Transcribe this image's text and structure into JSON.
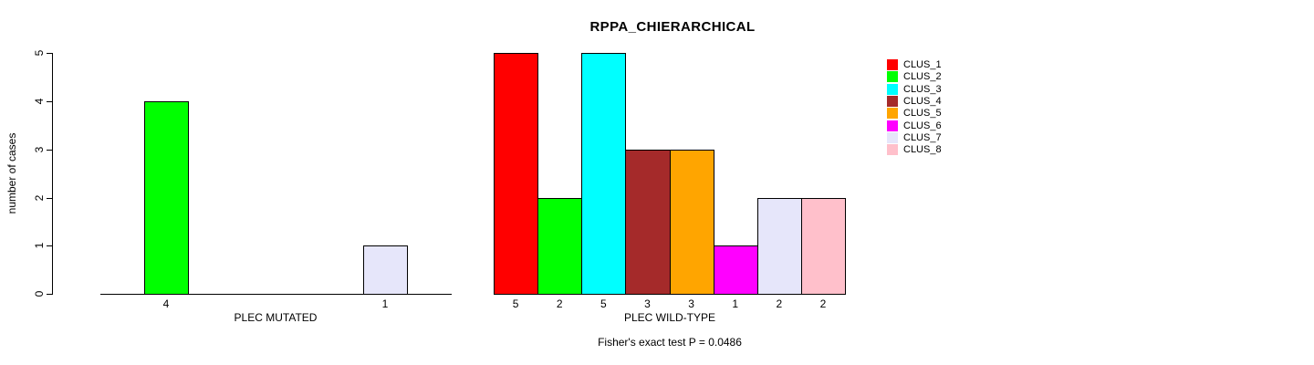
{
  "title": "RPPA_CHIERARCHICAL",
  "caption": "Fisher's exact test P = 0.0486",
  "y_axis": {
    "label": "number of cases",
    "ticks": [
      0,
      1,
      2,
      3,
      4,
      5
    ],
    "range": [
      0,
      5
    ]
  },
  "chart_data": [
    {
      "type": "bar",
      "panel": "left",
      "xlabel": "PLEC MUTATED",
      "categories": [
        "CLUS_1",
        "CLUS_2",
        "CLUS_3",
        "CLUS_4",
        "CLUS_5",
        "CLUS_6",
        "CLUS_7",
        "CLUS_8"
      ],
      "values": [
        0,
        4,
        0,
        0,
        0,
        0,
        1,
        0
      ],
      "bar_value_labels": [
        "",
        "4",
        "",
        "",
        "",
        "",
        "1",
        ""
      ],
      "colors": [
        "#FF0000",
        "#00FF00",
        "#00FFFF",
        "#A52A2A",
        "#FFA500",
        "#FF00FF",
        "#E6E6FA",
        "#FFC0CB"
      ],
      "ylim": [
        0,
        5
      ],
      "grid": false
    },
    {
      "type": "bar",
      "panel": "right",
      "xlabel": "PLEC WILD-TYPE",
      "categories": [
        "CLUS_1",
        "CLUS_2",
        "CLUS_3",
        "CLUS_4",
        "CLUS_5",
        "CLUS_6",
        "CLUS_7",
        "CLUS_8"
      ],
      "values": [
        5,
        2,
        5,
        3,
        3,
        1,
        2,
        2
      ],
      "bar_value_labels": [
        "5",
        "2",
        "5",
        "3",
        "3",
        "1",
        "2",
        "2"
      ],
      "colors": [
        "#FF0000",
        "#00FF00",
        "#00FFFF",
        "#A52A2A",
        "#FFA500",
        "#FF00FF",
        "#E6E6FA",
        "#FFC0CB"
      ],
      "ylim": [
        0,
        5
      ],
      "grid": false
    }
  ],
  "legend": {
    "position": "right",
    "entries": [
      {
        "label": "CLUS_1",
        "color": "#FF0000"
      },
      {
        "label": "CLUS_2",
        "color": "#00FF00"
      },
      {
        "label": "CLUS_3",
        "color": "#00FFFF"
      },
      {
        "label": "CLUS_4",
        "color": "#A52A2A"
      },
      {
        "label": "CLUS_5",
        "color": "#FFA500"
      },
      {
        "label": "CLUS_6",
        "color": "#FF00FF"
      },
      {
        "label": "CLUS_7",
        "color": "#E6E6FA"
      },
      {
        "label": "CLUS_8",
        "color": "#FFC0CB"
      }
    ]
  }
}
